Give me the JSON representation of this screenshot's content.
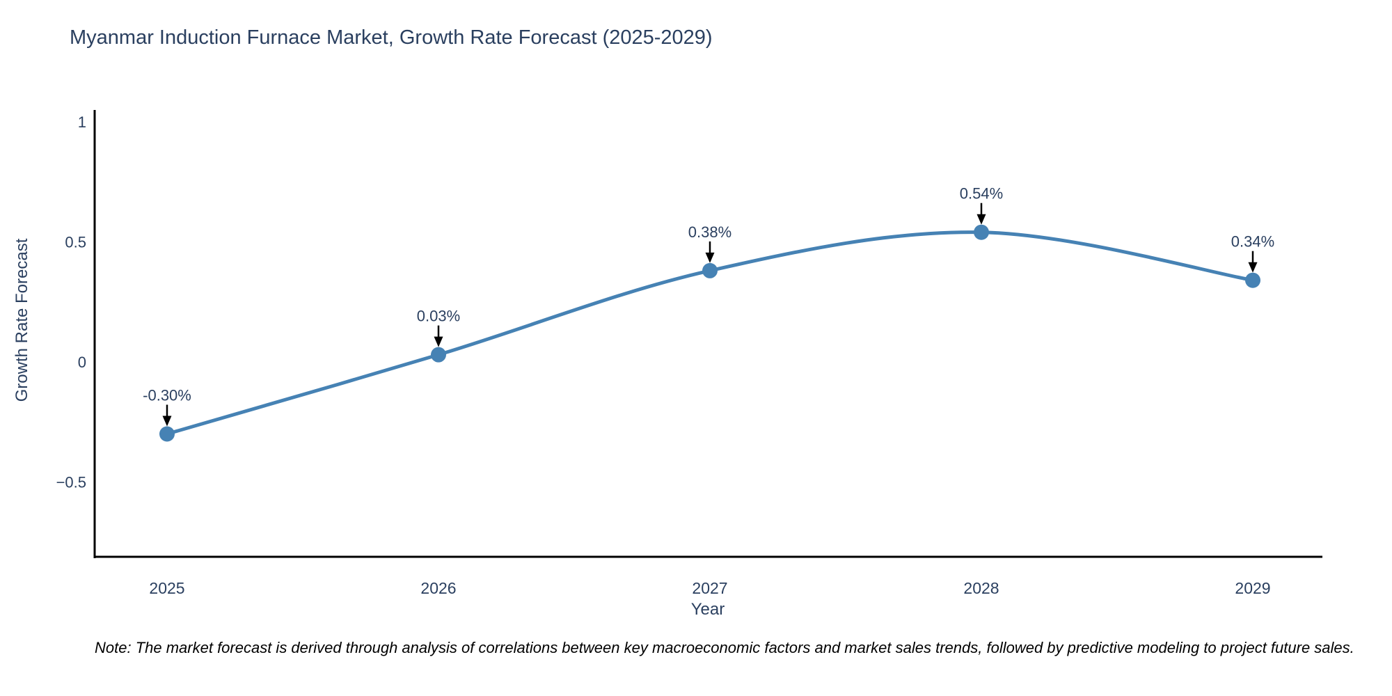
{
  "chart_data": {
    "type": "line",
    "title": "Myanmar Induction Furnace Market, Growth Rate Forecast (2025-2029)",
    "x": [
      2025,
      2026,
      2027,
      2028,
      2029
    ],
    "series": [
      {
        "name": "Growth Rate Forecast",
        "values": [
          -0.3,
          0.03,
          0.38,
          0.54,
          0.34
        ]
      }
    ],
    "point_labels": [
      "-0.30%",
      "0.03%",
      "0.38%",
      "0.54%",
      "0.34%"
    ],
    "xlabel": "Year",
    "ylabel": "Growth Rate Forecast",
    "yticks": [
      {
        "value": -0.5,
        "label": "−0.5"
      },
      {
        "value": 0,
        "label": "0"
      },
      {
        "value": 0.5,
        "label": "0.5"
      },
      {
        "value": 1,
        "label": "1"
      }
    ],
    "ylim": [
      -0.81,
      1.04
    ],
    "line_shape": "spline",
    "grid": false,
    "legend_position": "none",
    "colors": {
      "line": "#4682B4",
      "marker": "#4682B4",
      "text": "#2a3f5f",
      "axis": "#000000",
      "annotation_arrow": "#000000"
    }
  },
  "note": "Note: The market forecast is derived through analysis of correlations between key macroeconomic factors and market sales trends, followed by predictive modeling to project future sales."
}
